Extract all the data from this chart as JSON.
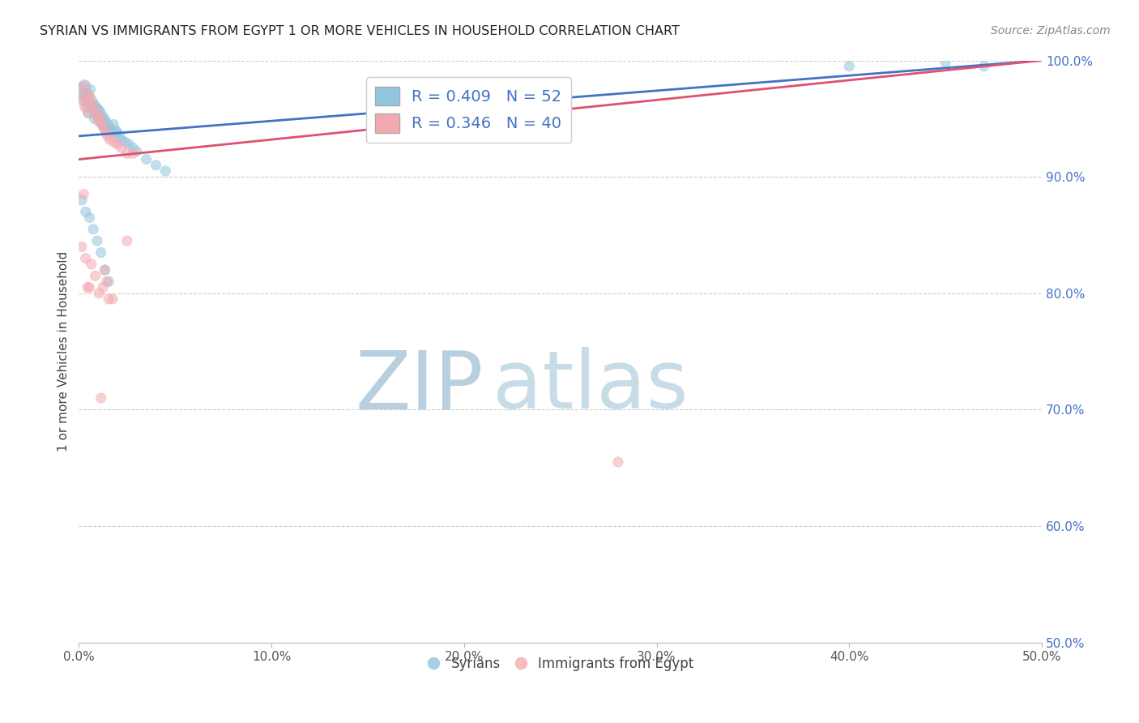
{
  "title": "SYRIAN VS IMMIGRANTS FROM EGYPT 1 OR MORE VEHICLES IN HOUSEHOLD CORRELATION CHART",
  "source": "Source: ZipAtlas.com",
  "ylabel": "1 or more Vehicles in Household",
  "xlim": [
    0.0,
    50.0
  ],
  "ylim": [
    50.0,
    100.0
  ],
  "xticks": [
    0.0,
    10.0,
    20.0,
    30.0,
    40.0,
    50.0
  ],
  "yticks_right": [
    50.0,
    60.0,
    70.0,
    80.0,
    90.0,
    100.0
  ],
  "legend_blue_label": "R = 0.409   N = 52",
  "legend_pink_label": "R = 0.346   N = 40",
  "syrians_label": "Syrians",
  "egypt_label": "Immigrants from Egypt",
  "blue_color": "#92c5de",
  "pink_color": "#f4a9b0",
  "blue_line_color": "#4472c4",
  "pink_line_color": "#e05070",
  "background_color": "#ffffff",
  "watermark_color": "#d0e0ee",
  "blue_line_x0": 0.0,
  "blue_line_y0": 93.5,
  "blue_line_x1": 50.0,
  "blue_line_y1": 100.0,
  "pink_line_x0": 0.0,
  "pink_line_y0": 91.5,
  "pink_line_x1": 50.0,
  "pink_line_y1": 100.0,
  "syrians_x": [
    0.1,
    0.2,
    0.3,
    0.3,
    0.4,
    0.4,
    0.5,
    0.5,
    0.6,
    0.6,
    0.7,
    0.7,
    0.8,
    0.8,
    0.9,
    0.9,
    1.0,
    1.0,
    1.1,
    1.1,
    1.2,
    1.2,
    1.3,
    1.3,
    1.4,
    1.4,
    1.5,
    1.6,
    1.7,
    1.8,
    1.9,
    2.0,
    2.1,
    2.2,
    2.4,
    2.6,
    2.8,
    3.0,
    3.5,
    4.0,
    4.5,
    0.15,
    0.35,
    0.55,
    0.75,
    0.95,
    1.15,
    1.35,
    1.55,
    40.0,
    45.0,
    47.0
  ],
  "syrians_y": [
    97.5,
    97.0,
    97.8,
    96.5,
    96.0,
    97.2,
    96.8,
    95.5,
    97.5,
    96.0,
    96.5,
    95.8,
    96.2,
    95.0,
    96.0,
    95.4,
    95.8,
    95.2,
    95.6,
    94.8,
    95.3,
    94.5,
    95.0,
    94.2,
    94.8,
    94.0,
    94.5,
    94.2,
    93.8,
    94.5,
    94.0,
    93.8,
    93.5,
    93.2,
    93.0,
    92.8,
    92.5,
    92.2,
    91.5,
    91.0,
    90.5,
    88.0,
    87.0,
    86.5,
    85.5,
    84.5,
    83.5,
    82.0,
    81.0,
    99.5,
    99.8,
    99.5
  ],
  "syrians_size": [
    200,
    100,
    150,
    120,
    100,
    130,
    100,
    120,
    100,
    110,
    100,
    100,
    100,
    100,
    100,
    100,
    100,
    100,
    100,
    100,
    100,
    100,
    100,
    100,
    100,
    100,
    100,
    100,
    100,
    100,
    100,
    100,
    100,
    100,
    100,
    100,
    100,
    100,
    100,
    100,
    100,
    100,
    100,
    100,
    100,
    100,
    100,
    100,
    100,
    100,
    100,
    100
  ],
  "egypt_x": [
    0.1,
    0.2,
    0.3,
    0.3,
    0.4,
    0.5,
    0.5,
    0.6,
    0.7,
    0.8,
    0.9,
    1.0,
    1.0,
    1.1,
    1.2,
    1.3,
    1.4,
    1.5,
    1.6,
    1.8,
    2.0,
    2.2,
    2.5,
    0.15,
    0.35,
    0.45,
    0.65,
    0.85,
    1.05,
    1.25,
    1.45,
    1.75,
    2.8,
    0.25,
    2.5,
    0.55,
    1.15,
    1.35,
    1.55,
    28.0
  ],
  "egypt_y": [
    97.2,
    96.5,
    97.8,
    96.0,
    96.5,
    97.0,
    95.5,
    96.8,
    96.2,
    95.8,
    95.5,
    95.2,
    94.8,
    95.0,
    94.5,
    94.2,
    93.8,
    93.5,
    93.2,
    93.0,
    92.8,
    92.5,
    92.0,
    84.0,
    83.0,
    80.5,
    82.5,
    81.5,
    80.0,
    80.5,
    81.0,
    79.5,
    92.0,
    88.5,
    84.5,
    80.5,
    71.0,
    82.0,
    79.5,
    65.5
  ],
  "egypt_size": [
    100,
    100,
    100,
    100,
    100,
    100,
    100,
    100,
    100,
    100,
    100,
    100,
    100,
    100,
    100,
    100,
    100,
    100,
    100,
    100,
    100,
    100,
    100,
    100,
    100,
    100,
    100,
    100,
    100,
    100,
    100,
    100,
    100,
    100,
    100,
    100,
    100,
    100,
    100,
    100
  ]
}
